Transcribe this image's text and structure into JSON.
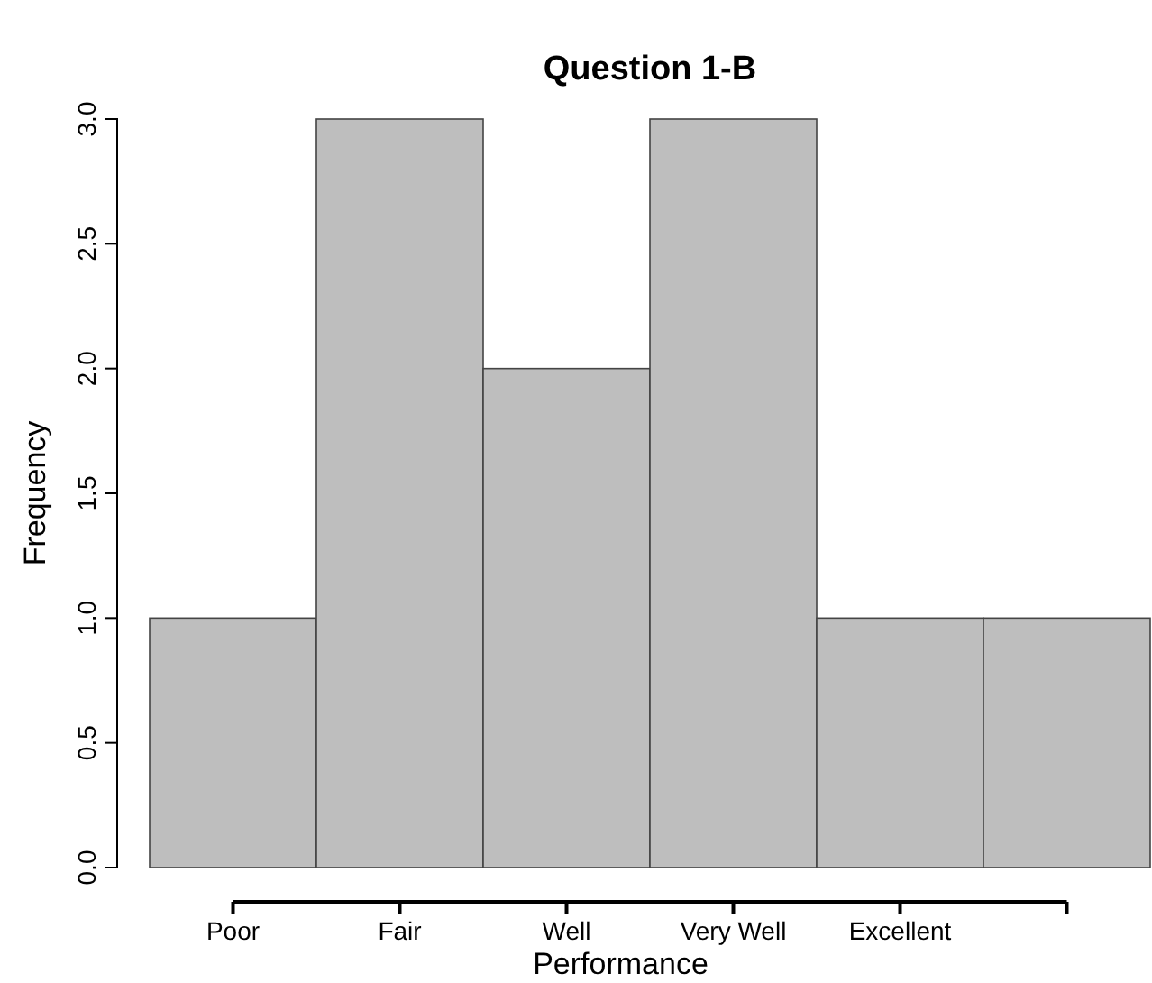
{
  "chart_data": {
    "type": "bar",
    "title": "Question 1-B",
    "xlabel": "Performance",
    "ylabel": "Frequency",
    "categories": [
      "Poor",
      "Fair",
      "Well",
      "Very Well",
      "Excellent",
      null
    ],
    "values": [
      1,
      3,
      2,
      3,
      1,
      1
    ],
    "color": "#bebebe",
    "ylim": [
      0,
      3
    ],
    "yticks": [
      {
        "value": 0,
        "label": "0.0"
      },
      {
        "value": 0.5,
        "label": "0.5"
      },
      {
        "value": 1,
        "label": "1.0"
      },
      {
        "value": 1.5,
        "label": "1.5"
      },
      {
        "value": 2,
        "label": "2.0"
      },
      {
        "value": 2.5,
        "label": "2.5"
      },
      {
        "value": 3,
        "label": "3.0"
      }
    ],
    "stacked": false
  }
}
